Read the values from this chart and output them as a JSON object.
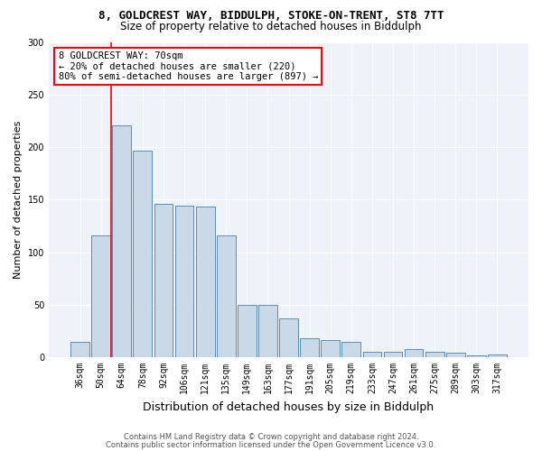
{
  "title_line1": "8, GOLDCREST WAY, BIDDULPH, STOKE-ON-TRENT, ST8 7TT",
  "title_line2": "Size of property relative to detached houses in Biddulph",
  "xlabel": "Distribution of detached houses by size in Biddulph",
  "ylabel": "Number of detached properties",
  "categories": [
    "36sqm",
    "50sqm",
    "64sqm",
    "78sqm",
    "92sqm",
    "106sqm",
    "121sqm",
    "135sqm",
    "149sqm",
    "163sqm",
    "177sqm",
    "191sqm",
    "205sqm",
    "219sqm",
    "233sqm",
    "247sqm",
    "261sqm",
    "275sqm",
    "289sqm",
    "303sqm",
    "317sqm"
  ],
  "values": [
    15,
    116,
    221,
    197,
    146,
    144,
    143,
    116,
    50,
    50,
    37,
    18,
    16,
    15,
    5,
    5,
    8,
    5,
    4,
    2,
    3
  ],
  "bar_color": "#c9d9e8",
  "bar_edge_color": "#5b8db8",
  "red_line_index": 2,
  "annotation_line1": "8 GOLDCREST WAY: 70sqm",
  "annotation_line2": "← 20% of detached houses are smaller (220)",
  "annotation_line3": "80% of semi-detached houses are larger (897) →",
  "ylim": [
    0,
    300
  ],
  "yticks": [
    0,
    50,
    100,
    150,
    200,
    250,
    300
  ],
  "background_color": "#eef2f9",
  "footer_line1": "Contains HM Land Registry data © Crown copyright and database right 2024.",
  "footer_line2": "Contains public sector information licensed under the Open Government Licence v3.0.",
  "title1_fontsize": 9,
  "title2_fontsize": 8.5,
  "xlabel_fontsize": 9,
  "ylabel_fontsize": 8,
  "tick_fontsize": 7,
  "annotation_fontsize": 7.5,
  "footer_fontsize": 6,
  "grid_color": "#ffffff",
  "bar_linewidth": 0.7
}
